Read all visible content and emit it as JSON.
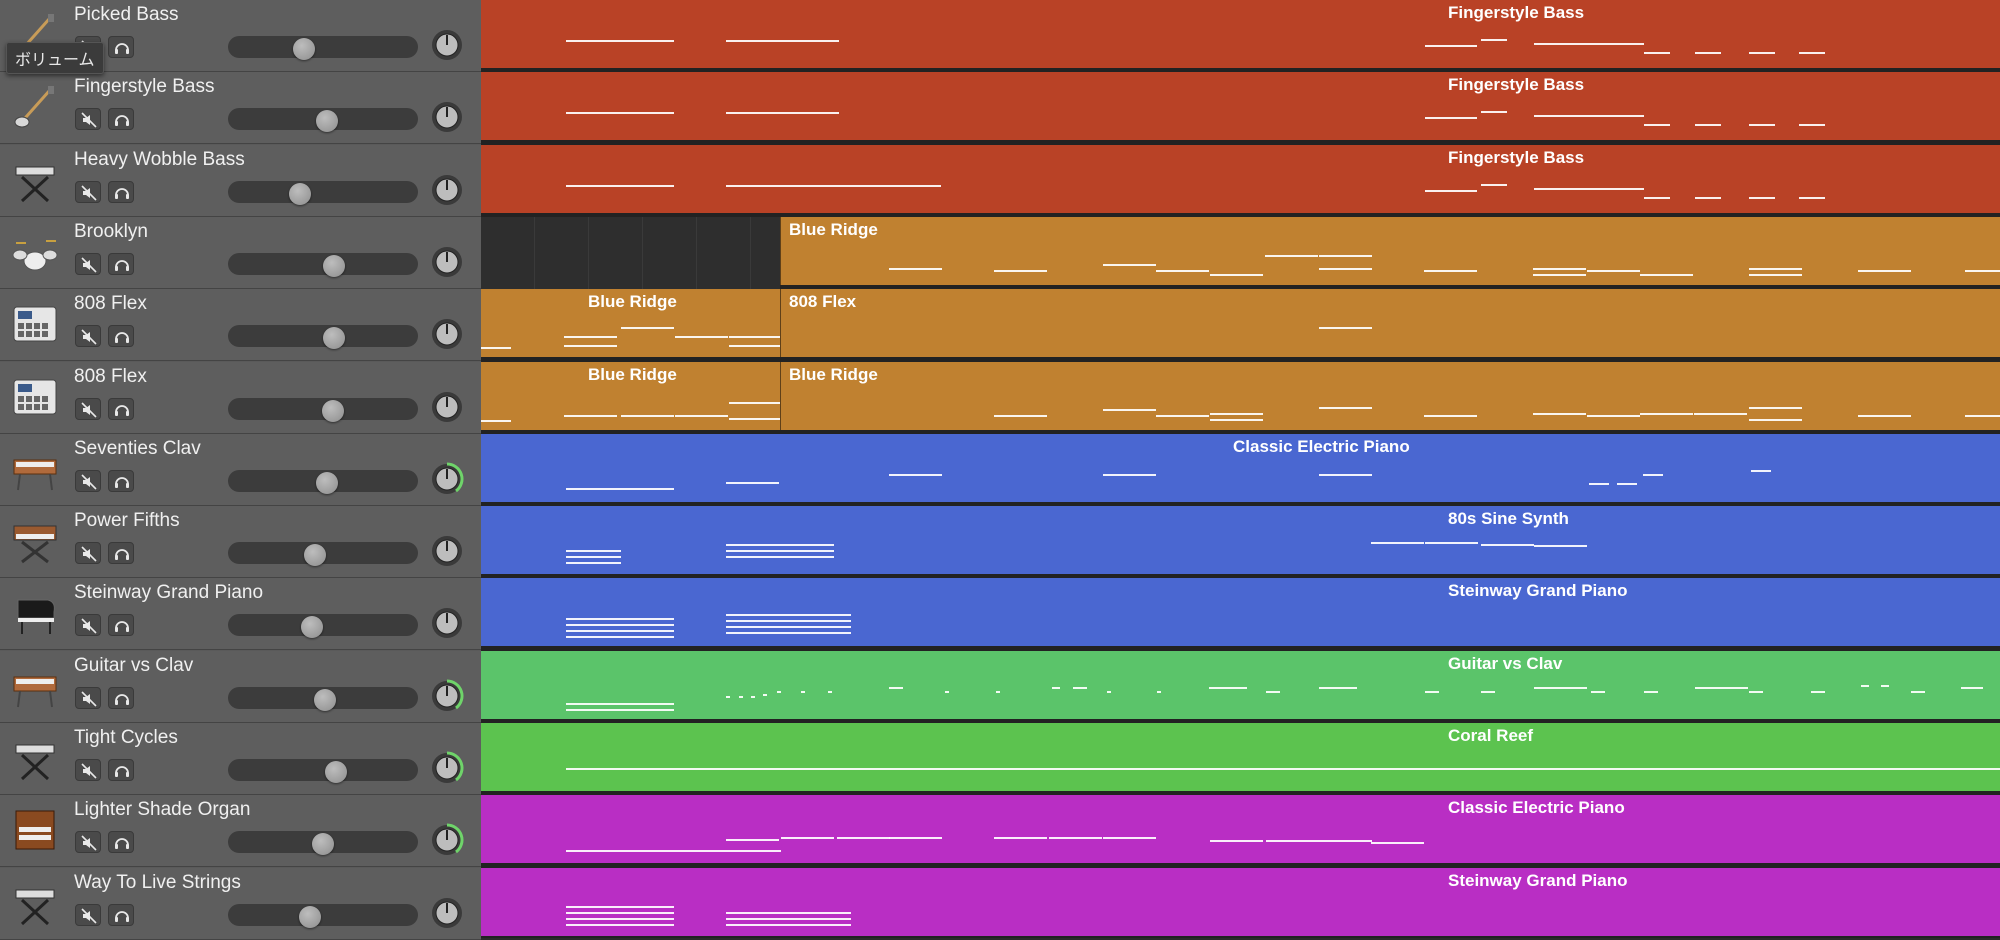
{
  "tooltip": "ボリューム",
  "colors": {
    "bass": "#b94226",
    "drums": "#c08130",
    "keys": "#4a67d1",
    "guitar": "#5bc46a",
    "tight": "#5cc34f",
    "organ": "#b92ec4"
  },
  "tracks": [
    {
      "name": "Picked Bass",
      "icon": "bass-guitar-icon",
      "volume": 0.4,
      "pan_ring": false,
      "region": "Fingerstyle Bass",
      "color": "bass"
    },
    {
      "name": "Fingerstyle Bass",
      "icon": "bass-guitar-icon",
      "volume": 0.52,
      "pan_ring": false,
      "region": "Fingerstyle Bass",
      "color": "bass"
    },
    {
      "name": "Heavy Wobble Bass",
      "icon": "keyboard-stand-icon",
      "volume": 0.38,
      "pan_ring": false,
      "region": "Fingerstyle Bass",
      "color": "bass"
    },
    {
      "name": "Brooklyn",
      "icon": "drum-kit-icon",
      "volume": 0.56,
      "pan_ring": false,
      "region": "Blue Ridge",
      "color": "drums"
    },
    {
      "name": "808 Flex",
      "icon": "drum-machine-icon",
      "volume": 0.56,
      "pan_ring": false,
      "regions": [
        "Blue Ridge",
        "808 Flex"
      ],
      "color": "drums"
    },
    {
      "name": "808 Flex",
      "icon": "drum-machine-icon",
      "volume": 0.55,
      "pan_ring": false,
      "regions": [
        "Blue Ridge",
        "Blue Ridge"
      ],
      "color": "drums"
    },
    {
      "name": "Seventies Clav",
      "icon": "clavinet-icon",
      "volume": 0.52,
      "pan_ring": true,
      "region": "Classic Electric Piano",
      "color": "keys"
    },
    {
      "name": "Power Fifths",
      "icon": "synth-keyboard-icon",
      "volume": 0.46,
      "pan_ring": false,
      "region": "80s Sine Synth",
      "color": "keys"
    },
    {
      "name": "Steinway Grand Piano",
      "icon": "grand-piano-icon",
      "volume": 0.44,
      "pan_ring": false,
      "region": "Steinway Grand Piano",
      "color": "keys"
    },
    {
      "name": "Guitar vs Clav",
      "icon": "clavinet-icon",
      "volume": 0.51,
      "pan_ring": true,
      "region": "Guitar vs Clav",
      "color": "guitar"
    },
    {
      "name": "Tight Cycles",
      "icon": "keyboard-stand-icon",
      "volume": 0.57,
      "pan_ring": true,
      "region": "Coral Reef",
      "color": "tight"
    },
    {
      "name": "Lighter Shade Organ",
      "icon": "organ-icon",
      "volume": 0.5,
      "pan_ring": true,
      "region": "Classic Electric Piano",
      "color": "organ"
    },
    {
      "name": "Way To Live Strings",
      "icon": "keyboard-stand-icon",
      "volume": 0.43,
      "pan_ring": false,
      "region": "Steinway Grand Piano",
      "color": "organ"
    }
  ]
}
